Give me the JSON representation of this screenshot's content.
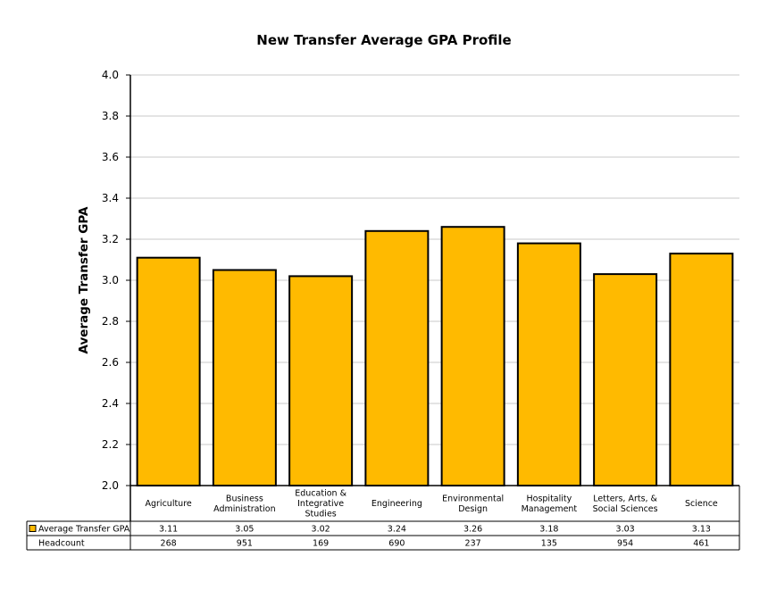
{
  "chart_data": {
    "type": "bar",
    "title": "New Transfer Average GPA Profile",
    "ylabel": "Average Transfer GPA",
    "xlabel": "",
    "ylim": [
      2.0,
      4.0
    ],
    "yticks": [
      "2.0",
      "2.2",
      "2.4",
      "2.6",
      "2.8",
      "3.0",
      "3.2",
      "3.4",
      "3.6",
      "3.8",
      "4.0"
    ],
    "grid": true,
    "bar_color": "#FFBA00",
    "categories": [
      [
        "Agriculture"
      ],
      [
        "Business",
        "Administration"
      ],
      [
        "Education &",
        "Integrative",
        "Studies"
      ],
      [
        "Engineering"
      ],
      [
        "Environmental",
        "Design"
      ],
      [
        "Hospitality",
        "Management"
      ],
      [
        "Letters, Arts, &",
        "Social Sciences"
      ],
      [
        "Science"
      ]
    ],
    "series": [
      {
        "name": "Average Transfer GPA",
        "values": [
          3.11,
          3.05,
          3.02,
          3.24,
          3.26,
          3.18,
          3.03,
          3.13
        ]
      }
    ],
    "table": {
      "rows": [
        {
          "label": "Average Transfer GPA",
          "has_legend_key": true,
          "cells": [
            "3.11",
            "3.05",
            "3.02",
            "3.24",
            "3.26",
            "3.18",
            "3.03",
            "3.13"
          ]
        },
        {
          "label": "Headcount",
          "has_legend_key": false,
          "cells": [
            "268",
            "951",
            "169",
            "690",
            "237",
            "135",
            "954",
            "461"
          ]
        }
      ]
    }
  }
}
